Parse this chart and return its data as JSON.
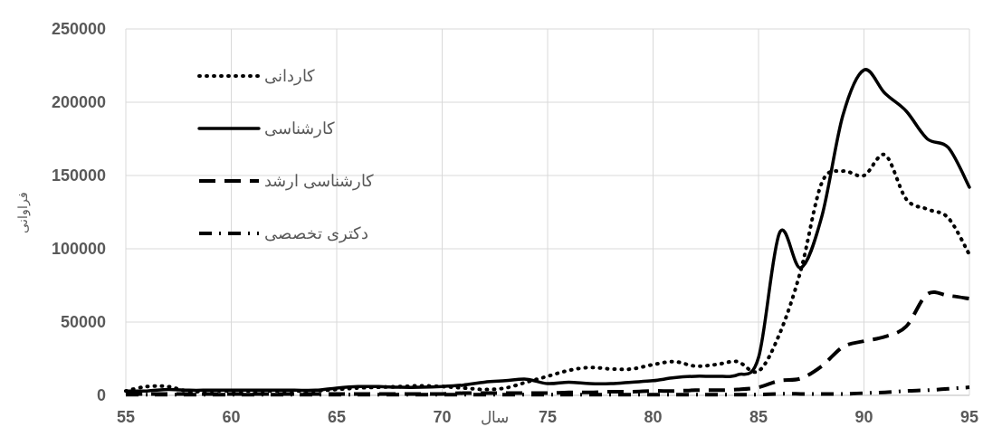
{
  "chart_data": {
    "type": "line",
    "xlabel": "سال",
    "ylabel": "فراوانی",
    "x": [
      55,
      56,
      57,
      58,
      59,
      60,
      61,
      62,
      63,
      64,
      65,
      66,
      67,
      68,
      69,
      70,
      71,
      72,
      73,
      74,
      75,
      76,
      77,
      78,
      79,
      80,
      81,
      82,
      83,
      84,
      85,
      86,
      87,
      88,
      89,
      90,
      91,
      92,
      93,
      94,
      95
    ],
    "xlim": [
      55,
      95
    ],
    "xticks": [
      55,
      60,
      65,
      70,
      75,
      80,
      85,
      90,
      95
    ],
    "ylim": [
      0,
      250000
    ],
    "yticks": [
      0,
      50000,
      100000,
      150000,
      200000,
      250000
    ],
    "grid": true,
    "legend": "top left",
    "marker": "none",
    "series": [
      {
        "name": "کاردانی",
        "color": "#000000",
        "line_style": "dotted",
        "values": [
          3000,
          6000,
          6000,
          2500,
          3000,
          3000,
          3000,
          3000,
          3000,
          3000,
          4000,
          5000,
          5500,
          6000,
          6500,
          6000,
          5000,
          4000,
          5000,
          9000,
          13000,
          17000,
          19000,
          18000,
          18000,
          21000,
          23000,
          20000,
          21000,
          23000,
          16500,
          42000,
          85000,
          145000,
          153000,
          150000,
          164000,
          134000,
          127000,
          121000,
          96000
        ]
      },
      {
        "name": "کارشناسی",
        "color": "#000000",
        "line_style": "solid",
        "values": [
          3000,
          3000,
          4000,
          3500,
          3500,
          3500,
          3500,
          3500,
          3500,
          3500,
          5000,
          6000,
          6000,
          5500,
          5500,
          6000,
          7000,
          9000,
          10000,
          11000,
          8000,
          9000,
          8000,
          8000,
          9000,
          10000,
          12000,
          13000,
          13000,
          14000,
          25700,
          111000,
          87000,
          122000,
          191000,
          222000,
          206000,
          194000,
          175000,
          169000,
          142000
        ]
      },
      {
        "name": "کارشناسی ارشد",
        "color": "#000000",
        "line_style": "dashed",
        "values": [
          1000,
          1000,
          1000,
          1000,
          1000,
          1000,
          1000,
          1000,
          1000,
          1000,
          1000,
          1000,
          1000,
          1000,
          1000,
          1000,
          1500,
          1500,
          1500,
          1500,
          1500,
          2000,
          2000,
          2500,
          2500,
          3000,
          3000,
          3500,
          3500,
          4000,
          5500,
          10000,
          11500,
          20000,
          33000,
          37000,
          40000,
          47000,
          69000,
          68000,
          66000
        ]
      },
      {
        "name": "دکتری تخصصی",
        "color": "#000000",
        "line_style": "dashdot",
        "values": [
          500,
          500,
          500,
          500,
          500,
          500,
          500,
          500,
          500,
          500,
          500,
          500,
          500,
          500,
          500,
          500,
          500,
          500,
          500,
          500,
          500,
          500,
          500,
          500,
          500,
          500,
          500,
          500,
          500,
          500,
          500,
          1000,
          1000,
          1000,
          1000,
          1500,
          2000,
          3000,
          3500,
          4500,
          5500
        ]
      }
    ]
  }
}
